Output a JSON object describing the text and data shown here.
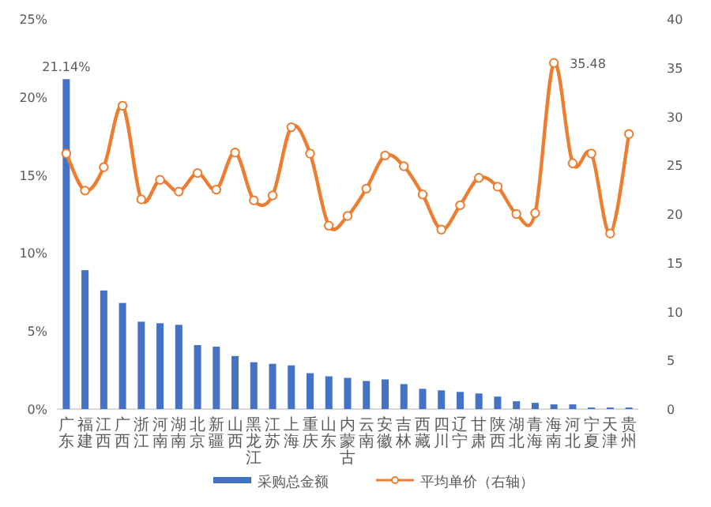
{
  "chart_data": {
    "type": "bar",
    "categories": [
      "广东",
      "福建",
      "江西",
      "广西",
      "浙江",
      "河南",
      "湖南",
      "北京",
      "新疆",
      "山西",
      "黑龙江",
      "江苏",
      "上海",
      "重庆",
      "山东",
      "内蒙古",
      "云南",
      "安徽",
      "吉林",
      "西藏",
      "四川",
      "辽宁",
      "甘肃",
      "陕西",
      "湖北",
      "青海",
      "海南",
      "河北",
      "宁夏",
      "天津",
      "贵州"
    ],
    "series": [
      {
        "name": "采购总金额",
        "color": "#4472c4",
        "values": [
          21.14,
          8.9,
          7.6,
          6.8,
          5.6,
          5.5,
          5.4,
          4.1,
          4.0,
          3.4,
          3.0,
          2.9,
          2.8,
          2.3,
          2.1,
          2.0,
          1.8,
          1.9,
          1.6,
          1.3,
          1.2,
          1.1,
          1.0,
          0.8,
          0.5,
          0.4,
          0.3,
          0.3,
          0.1,
          0.1,
          0.1
        ],
        "value_labels": [
          "21.14%",
          null,
          null,
          null,
          null,
          null,
          null,
          null,
          null,
          null,
          null,
          null,
          null,
          null,
          null,
          null,
          null,
          null,
          null,
          null,
          null,
          null,
          null,
          null,
          null,
          null,
          null,
          null,
          null,
          null,
          null
        ]
      },
      {
        "name": "平均单价（右轴）",
        "type": "line",
        "axis": "y2",
        "color": "#ed7d31",
        "marker": "circle",
        "values": [
          26.2,
          22.4,
          24.8,
          31.1,
          21.5,
          23.5,
          22.3,
          24.2,
          22.5,
          26.3,
          21.4,
          21.9,
          28.9,
          26.2,
          18.8,
          19.8,
          22.6,
          26.0,
          24.9,
          22.0,
          18.4,
          20.9,
          23.7,
          22.8,
          20.0,
          20.1,
          35.48,
          25.2,
          26.2,
          18.0,
          28.2
        ],
        "value_labels": [
          null,
          null,
          null,
          null,
          null,
          null,
          null,
          null,
          null,
          null,
          null,
          null,
          null,
          null,
          null,
          null,
          null,
          null,
          null,
          null,
          null,
          null,
          null,
          null,
          null,
          null,
          "35.48",
          null,
          null,
          null,
          null
        ]
      }
    ],
    "ylim": [
      0,
      25
    ],
    "yticks": [
      {
        "value": 0,
        "label": "0%"
      },
      {
        "value": 5,
        "label": "5%"
      },
      {
        "value": 10,
        "label": "10%"
      },
      {
        "value": 15,
        "label": "15%"
      },
      {
        "value": 20,
        "label": "20%"
      },
      {
        "value": 25,
        "label": "25%"
      }
    ],
    "y2lim": [
      0,
      40
    ],
    "y2ticks": [
      0,
      5,
      10,
      15,
      20,
      25,
      30,
      35,
      40
    ],
    "legend": "bottom"
  }
}
